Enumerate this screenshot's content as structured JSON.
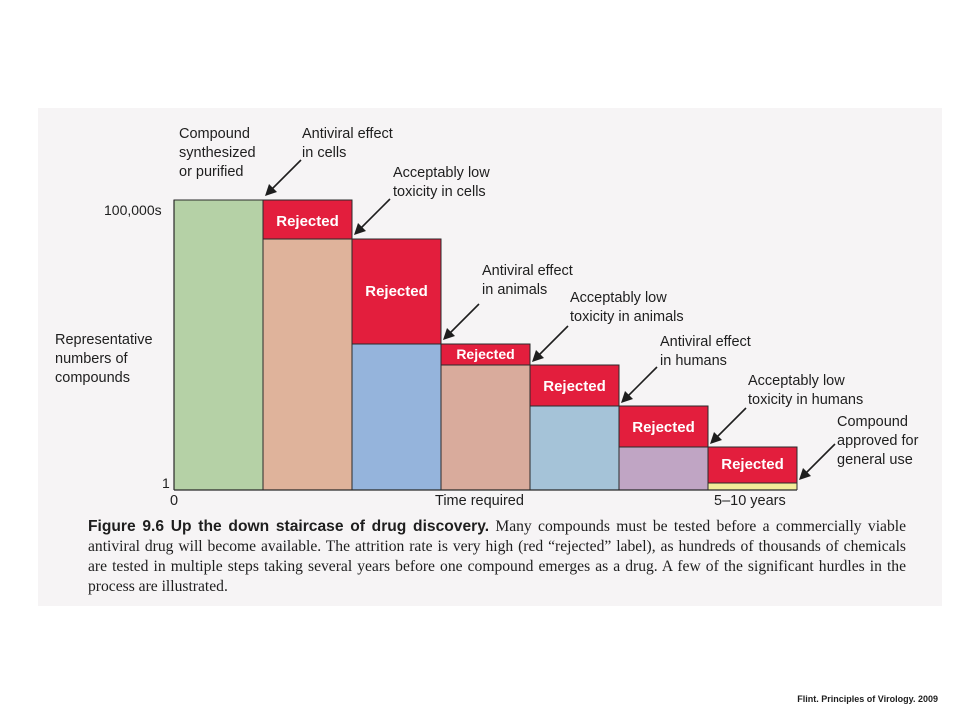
{
  "diagram": {
    "y_axis": {
      "top_label": "100,000s",
      "bottom_label": "1",
      "title": "Representative\nnumbers of\ncompounds"
    },
    "x_axis": {
      "start_label": "0",
      "middle_label": "Time required",
      "end_label": "5–10 years"
    },
    "rejected_label": "Rejected",
    "steps": [
      {
        "label": "Compound\nsynthesized\nor purified",
        "color": "#b5d1a6"
      },
      {
        "label": "Antiviral effect\nin cells",
        "color": "#dfb39b"
      },
      {
        "label": "Acceptably low\ntoxicity in cells",
        "color": "#95b4dc"
      },
      {
        "label": "Antiviral effect\nin animals",
        "color": "#d9ab9c"
      },
      {
        "label": "Acceptably low\ntoxicity in animals",
        "color": "#a5c3d8"
      },
      {
        "label": "Antiviral effect\nin humans",
        "color": "#c0a5c4"
      },
      {
        "label": "Acceptably low\ntoxicity in humans",
        "color": "#f3ed9a"
      },
      {
        "label": "Compound\napproved for\ngeneral use"
      }
    ],
    "rejected_color": "#e31e3d"
  },
  "caption": {
    "title": "Figure 9.6 Up the down staircase of drug discovery.",
    "body": " Many compounds must be tested before a commercially viable antiviral drug will become available. The attrition rate is very high (red “rejected” label), as hundreds of thousands of chemicals are tested in multiple steps taking several years before one compound emerges as a drug. A few of the significant hurdles in the process are illustrated."
  },
  "credit": "Flint. Principles of Virology. 2009"
}
